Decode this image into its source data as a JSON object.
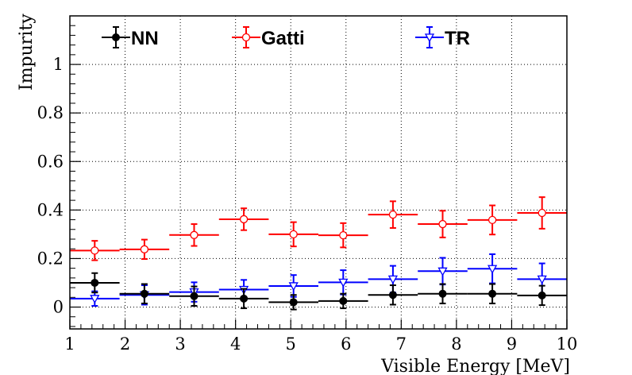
{
  "chart_data": {
    "type": "scatter",
    "xlabel": "Visible Energy [MeV]",
    "ylabel": "Impurity",
    "xlim": [
      1,
      10
    ],
    "ylim": [
      -0.09,
      1.2
    ],
    "xticks": [
      "1",
      "2",
      "3",
      "4",
      "5",
      "6",
      "7",
      "8",
      "9",
      "10"
    ],
    "yticks": [
      "0",
      "0.2",
      "0.4",
      "0.6",
      "0.8",
      "1"
    ],
    "ytick_values": [
      0,
      0.2,
      0.4,
      0.6,
      0.8,
      1
    ],
    "grid": true,
    "legend_position": "top",
    "series": [
      {
        "name": "NN",
        "color": "#000000",
        "marker": "filled-circle",
        "x": [
          1.45,
          2.35,
          3.25,
          4.15,
          5.05,
          5.95,
          6.85,
          7.75,
          8.65,
          9.55
        ],
        "xerr": 0.45,
        "y": [
          0.1,
          0.055,
          0.045,
          0.035,
          0.02,
          0.025,
          0.05,
          0.055,
          0.055,
          0.048
        ],
        "yerr": [
          0.04,
          0.04,
          0.04,
          0.04,
          0.03,
          0.03,
          0.04,
          0.04,
          0.04,
          0.04
        ]
      },
      {
        "name": "Gatti",
        "color": "#ff0000",
        "marker": "open-circle",
        "x": [
          1.45,
          2.35,
          3.25,
          4.15,
          5.05,
          5.95,
          6.85,
          7.75,
          8.65,
          9.55
        ],
        "xerr": 0.45,
        "y": [
          0.233,
          0.238,
          0.297,
          0.362,
          0.3,
          0.296,
          0.381,
          0.342,
          0.359,
          0.388
        ],
        "yerr": [
          0.04,
          0.04,
          0.045,
          0.045,
          0.05,
          0.05,
          0.055,
          0.055,
          0.06,
          0.065
        ]
      },
      {
        "name": "TR",
        "color": "#0000ff",
        "marker": "open-triangle-down",
        "x": [
          1.45,
          2.35,
          3.25,
          4.15,
          5.05,
          5.95,
          6.85,
          7.75,
          8.65,
          9.55
        ],
        "xerr": 0.45,
        "y": [
          0.035,
          0.05,
          0.062,
          0.072,
          0.087,
          0.102,
          0.115,
          0.148,
          0.158,
          0.115
        ],
        "yerr": [
          0.03,
          0.04,
          0.04,
          0.04,
          0.045,
          0.05,
          0.055,
          0.055,
          0.06,
          0.065
        ]
      }
    ]
  }
}
